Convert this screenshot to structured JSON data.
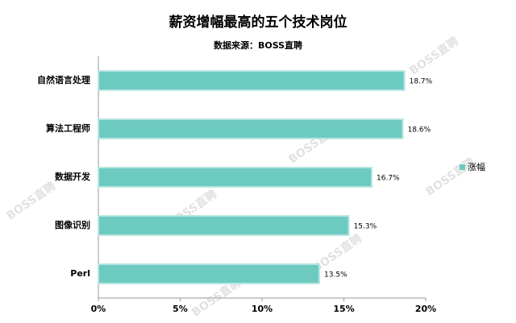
{
  "chart_data": {
    "type": "bar",
    "orientation": "horizontal",
    "title": "薪资增幅最高的五个技术岗位",
    "subtitle": "数据来源：BOSS直聘",
    "watermark": "BOSS直聘",
    "categories": [
      "自然语言处理",
      "算法工程师",
      "数据开发",
      "图像识别",
      "Perl"
    ],
    "series": [
      {
        "name": "涨幅",
        "color": "#6dcac1",
        "values": [
          18.7,
          18.6,
          16.7,
          15.3,
          13.5
        ],
        "value_labels": [
          "18.7%",
          "18.6%",
          "16.7%",
          "15.3%",
          "13.5%"
        ]
      }
    ],
    "xlim": [
      0,
      20
    ],
    "xticks": [
      {
        "value": 0,
        "label": "0%"
      },
      {
        "value": 5,
        "label": "5%"
      },
      {
        "value": 10,
        "label": "10%"
      },
      {
        "value": 15,
        "label": "15%"
      },
      {
        "value": 20,
        "label": "20%"
      }
    ],
    "legend": "right"
  }
}
